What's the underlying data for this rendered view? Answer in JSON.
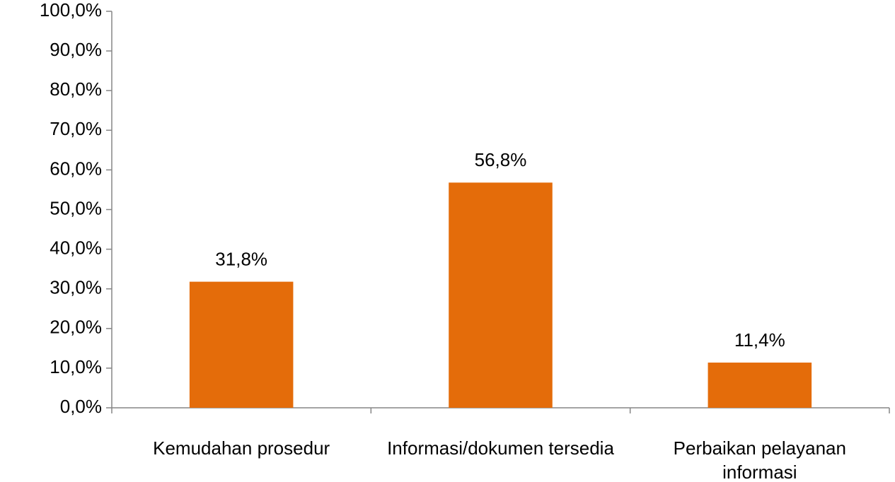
{
  "chart_data": {
    "type": "bar",
    "categories": [
      "Kemudahan prosedur",
      "Informasi/dokumen tersedia",
      "Perbaikan pelayanan informasi"
    ],
    "values": [
      31.8,
      56.8,
      11.4
    ],
    "value_labels": [
      "31,8%",
      "56,8%",
      "11,4%"
    ],
    "color": "#e46c0a",
    "ylim": [
      0,
      100
    ],
    "yticks": [
      {
        "value": 0,
        "label": "0,0%"
      },
      {
        "value": 10,
        "label": "10,0%"
      },
      {
        "value": 20,
        "label": "20,0%"
      },
      {
        "value": 30,
        "label": "30,0%"
      },
      {
        "value": 40,
        "label": "40,0%"
      },
      {
        "value": 50,
        "label": "50,0%"
      },
      {
        "value": 60,
        "label": "60,0%"
      },
      {
        "value": 70,
        "label": "70,0%"
      },
      {
        "value": 80,
        "label": "80,0%"
      },
      {
        "value": 90,
        "label": "90,0%"
      },
      {
        "value": 100,
        "label": "100,0%"
      }
    ],
    "grid": false
  }
}
